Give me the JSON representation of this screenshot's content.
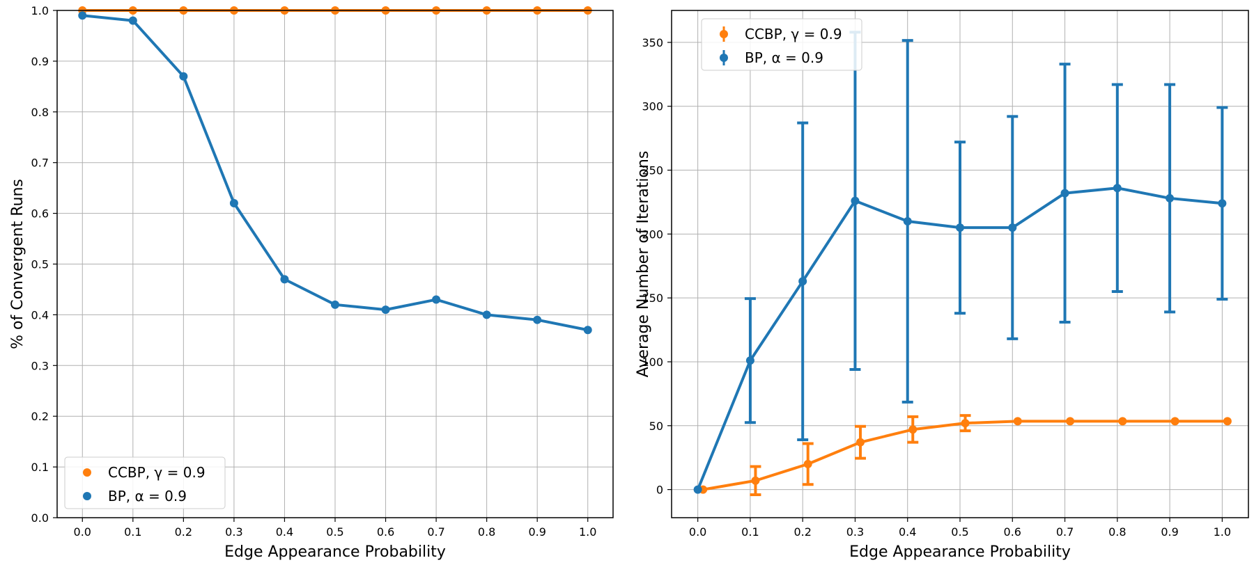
{
  "colors": {
    "ccbp": "#ff7f0e",
    "bp": "#1f77b4",
    "grid": "#b0b0b0"
  },
  "chart_data": [
    {
      "type": "line",
      "title": "",
      "xlabel": "Edge Appearance Probability",
      "ylabel": "% of Convergent Runs",
      "xlim": [
        -0.05,
        1.05
      ],
      "ylim": [
        0.0,
        1.0
      ],
      "xticks": [
        0.0,
        0.1,
        0.2,
        0.3,
        0.4,
        0.5,
        0.6,
        0.7,
        0.8,
        0.9,
        1.0
      ],
      "xtick_labels": [
        "0.0",
        "0.1",
        "0.2",
        "0.3",
        "0.4",
        "0.5",
        "0.6",
        "0.7",
        "0.8",
        "0.9",
        "1.0"
      ],
      "yticks": [
        0.0,
        0.1,
        0.2,
        0.3,
        0.4,
        0.5,
        0.6,
        0.7,
        0.8,
        0.9,
        1.0
      ],
      "ytick_labels": [
        "0.0",
        "0.1",
        "0.2",
        "0.3",
        "0.4",
        "0.5",
        "0.6",
        "0.7",
        "0.8",
        "0.9",
        "1.0"
      ],
      "grid": true,
      "legend_position": "lower-left",
      "legend": [
        {
          "series": "ccbp",
          "label": "CCBP, γ = 0.9"
        },
        {
          "series": "bp",
          "label": "BP, α = 0.9"
        }
      ],
      "series": [
        {
          "key": "ccbp",
          "name": "CCBP, γ = 0.9",
          "x": [
            0.0,
            0.1,
            0.2,
            0.3,
            0.4,
            0.5,
            0.6,
            0.7,
            0.8,
            0.9,
            1.0
          ],
          "y": [
            1.0,
            1.0,
            1.0,
            1.0,
            1.0,
            1.0,
            1.0,
            1.0,
            1.0,
            1.0,
            1.0
          ]
        },
        {
          "key": "bp",
          "name": "BP, α = 0.9",
          "x": [
            0.0,
            0.1,
            0.2,
            0.3,
            0.4,
            0.5,
            0.6,
            0.7,
            0.8,
            0.9,
            1.0
          ],
          "y": [
            0.99,
            0.98,
            0.87,
            0.62,
            0.47,
            0.42,
            0.41,
            0.43,
            0.4,
            0.39,
            0.37
          ]
        }
      ]
    },
    {
      "type": "line",
      "title": "",
      "xlabel": "Edge Appearance Probability",
      "ylabel": "Average Number of Iterations",
      "xlim": [
        -0.05,
        1.05
      ],
      "ylim": [
        -22,
        375
      ],
      "xticks": [
        0.0,
        0.1,
        0.2,
        0.3,
        0.4,
        0.5,
        0.6,
        0.7,
        0.8,
        0.9,
        1.0
      ],
      "xtick_labels": [
        "0.0",
        "0.1",
        "0.2",
        "0.3",
        "0.4",
        "0.5",
        "0.6",
        "0.7",
        "0.8",
        "0.9",
        "1.0"
      ],
      "yticks": [
        0,
        50,
        100,
        150,
        200,
        250,
        300,
        350
      ],
      "ytick_labels": [
        "0",
        "50",
        "100",
        "150",
        "200",
        "250",
        "300",
        "350"
      ],
      "grid": true,
      "legend_position": "upper-left",
      "legend": [
        {
          "series": "ccbp",
          "label": "CCBP, γ = 0.9"
        },
        {
          "series": "bp",
          "label": "BP, α = 0.9"
        }
      ],
      "series": [
        {
          "key": "ccbp",
          "name": "CCBP, γ = 0.9",
          "x": [
            0.01,
            0.11,
            0.21,
            0.31,
            0.41,
            0.51,
            0.61,
            0.71,
            0.81,
            0.91,
            1.01
          ],
          "y": [
            0,
            7,
            20,
            37,
            47,
            52,
            53.5,
            53.5,
            53.5,
            53.5,
            53.5
          ],
          "err": [
            0,
            11,
            16,
            12.5,
            10,
            6,
            0,
            0,
            0,
            0,
            0
          ]
        },
        {
          "key": "bp",
          "name": "BP, α = 0.9",
          "x": [
            0.0,
            0.1,
            0.2,
            0.3,
            0.4,
            0.5,
            0.6,
            0.7,
            0.8,
            0.9,
            1.0
          ],
          "y": [
            0,
            101,
            163,
            226,
            210,
            205,
            205,
            232,
            236,
            228,
            224
          ],
          "err": [
            0,
            48.5,
            124,
            132,
            141.5,
            67,
            87,
            101,
            81,
            89,
            75
          ]
        }
      ]
    }
  ]
}
